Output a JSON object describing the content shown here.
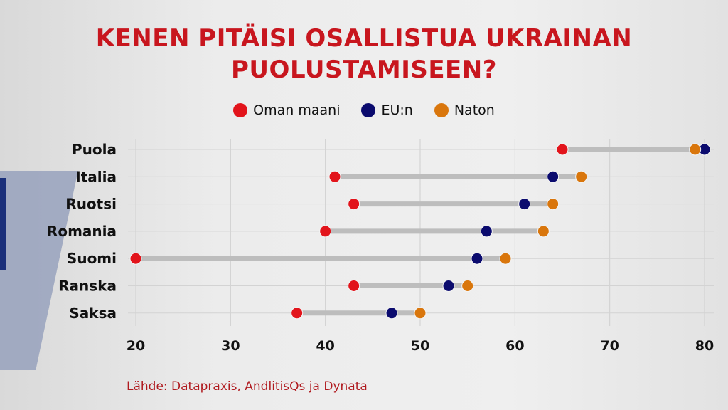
{
  "chart_data": {
    "type": "scatter",
    "title": "KENEN PITÄISI OSALLISTUA UKRAINAN PUOLUSTAMISEEN?",
    "categories": [
      "Puola",
      "Italia",
      "Ruotsi",
      "Romania",
      "Suomi",
      "Ranska",
      "Saksa"
    ],
    "series": [
      {
        "name": "Oman maani",
        "color": "#e2141b",
        "values": [
          65,
          41,
          43,
          40,
          20,
          43,
          37
        ]
      },
      {
        "name": "EU:n",
        "color": "#0b0b6e",
        "values": [
          80,
          64,
          61,
          57,
          56,
          53,
          47
        ]
      },
      {
        "name": "Naton",
        "color": "#d9760c",
        "values": [
          79,
          67,
          64,
          63,
          59,
          55,
          50
        ]
      }
    ],
    "xlim": [
      20,
      80
    ],
    "xticks": [
      20,
      30,
      40,
      50,
      60,
      70,
      80
    ],
    "grid": true,
    "legend": "top-center",
    "source": "Lähde: Datapraxis, AndlitisQs ja Dynata"
  }
}
